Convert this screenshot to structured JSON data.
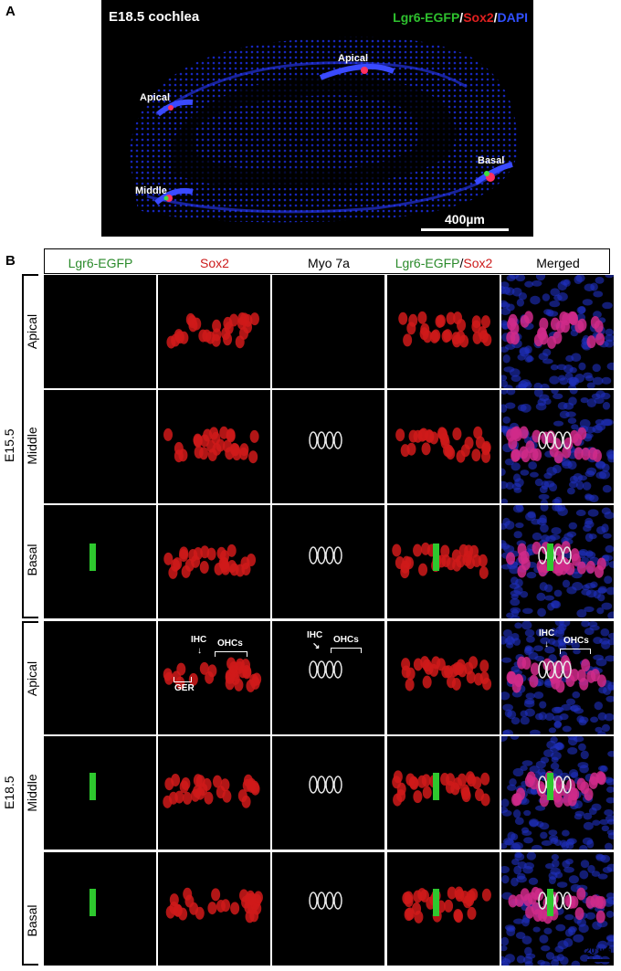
{
  "panel_a": {
    "letter": "A",
    "title": "E18.5 cochlea",
    "legend": {
      "lgr6": "Lgr6-EGFP",
      "sep1": "/",
      "sox2": "Sox2",
      "sep2": "/",
      "dapi": "DAPI"
    },
    "labels": {
      "apical_top": "Apical",
      "apical_left": "Apical",
      "basal": "Basal",
      "middle": "Middle"
    },
    "scale_bar": "400µm"
  },
  "panel_b": {
    "letter": "B",
    "columns": [
      "Lgr6-EGFP",
      "Sox2",
      "Myo 7a",
      "Lgr6-EGFP",
      "/",
      "Sox2",
      "Merged"
    ],
    "groups": {
      "e155": "E15.5",
      "e185": "E18.5"
    },
    "rows": [
      "Apical",
      "Middle",
      "Basal",
      "Apical",
      "Middle",
      "Basal"
    ],
    "annotations": {
      "ihc": "IHC",
      "ohcs": "OHCs",
      "ger": "GER"
    },
    "scale_bar": "20 µm"
  },
  "colors": {
    "green": "#2a8a2a",
    "red": "#cc1a1a",
    "blue": "#2a3acc",
    "black": "#000000"
  }
}
